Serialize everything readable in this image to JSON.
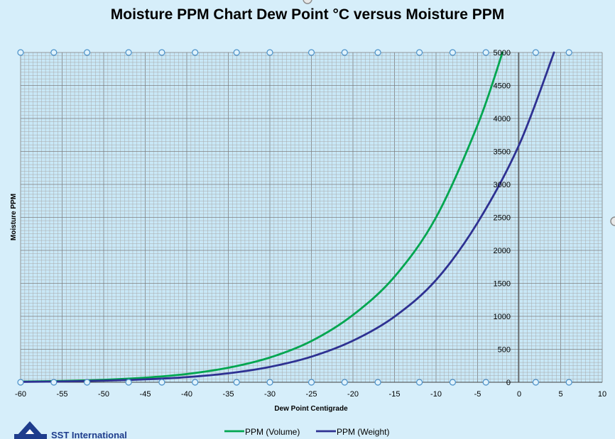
{
  "chart_data": {
    "type": "line",
    "title": "Moisture PPM Chart Dew Point °C versus Moisture PPM",
    "xlabel": "Dew Point Centigrade",
    "ylabel": "Moisture PPM",
    "xlim": [
      -60,
      10
    ],
    "ylim": [
      0,
      5000
    ],
    "x_ticks": [
      -60,
      -55,
      -50,
      -45,
      -40,
      -35,
      -30,
      -25,
      -20,
      -15,
      -10,
      -5,
      0,
      5,
      10
    ],
    "y_ticks": [
      0,
      500,
      1000,
      1500,
      2000,
      2500,
      3000,
      3500,
      4000,
      4500,
      5000
    ],
    "grid": true,
    "legend_position": "bottom",
    "series": [
      {
        "name": "PPM (Volume)",
        "color": "#00a650",
        "x": [
          -60,
          -55,
          -50,
          -45,
          -40,
          -35,
          -30,
          -25,
          -20,
          -15,
          -10,
          -5,
          -2
        ],
        "values": [
          10,
          20,
          38,
          70,
          125,
          220,
          375,
          625,
          1020,
          1600,
          2500,
          3900,
          5000
        ]
      },
      {
        "name": "PPM (Weight)",
        "color": "#2e3192",
        "x": [
          -60,
          -55,
          -50,
          -45,
          -40,
          -35,
          -30,
          -25,
          -20,
          -15,
          -10,
          -5,
          0,
          4.2
        ],
        "values": [
          6,
          12,
          24,
          44,
          78,
          136,
          233,
          388,
          630,
          995,
          1550,
          2420,
          3600,
          5000
        ]
      }
    ]
  },
  "logo": {
    "text": "SST International"
  }
}
